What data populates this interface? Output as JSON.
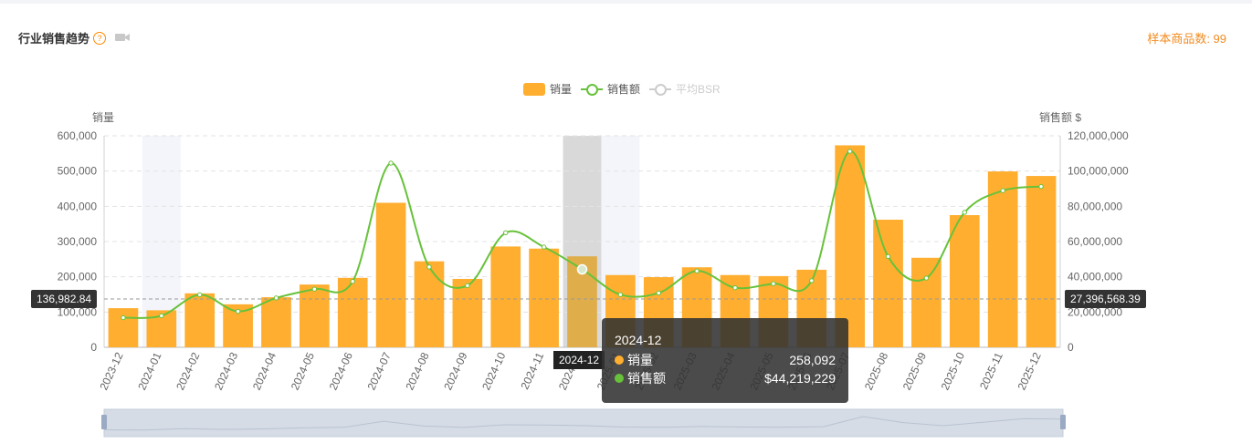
{
  "header": {
    "title": "行业销售趋势",
    "help_icon": "?",
    "sample_label": "样本商品数: 99"
  },
  "legend": [
    {
      "name": "销量",
      "type": "bar",
      "color": "#ffae2f",
      "active": true
    },
    {
      "name": "销售额",
      "type": "line",
      "color": "#67c23a",
      "active": true
    },
    {
      "name": "平均BSR",
      "type": "line",
      "color": "#cccccc",
      "active": false
    }
  ],
  "axes": {
    "left_title": "销量",
    "right_title": "销售额 $",
    "left_ticks": [
      "0",
      "100,000",
      "200,000",
      "300,000",
      "400,000",
      "500,000",
      "600,000"
    ],
    "right_ticks": [
      "0",
      "20,000,000",
      "40,000,000",
      "60,000,000",
      "80,000,000",
      "100,000,000",
      "120,000,000"
    ]
  },
  "crosshair": {
    "left_value": "136,982.84",
    "right_value": "27,396,568.39",
    "x_label": "2024-12"
  },
  "tooltip": {
    "title": "2024-12",
    "rows": [
      {
        "name": "销量",
        "value": "258,092",
        "color": "#ffae2f"
      },
      {
        "name": "销售额",
        "value": "$44,219,229",
        "color": "#67c23a"
      }
    ]
  },
  "chart_data": {
    "type": "bar",
    "categories": [
      "2023-12",
      "2024-01",
      "2024-02",
      "2024-03",
      "2024-04",
      "2024-05",
      "2024-06",
      "2024-07",
      "2024-08",
      "2024-09",
      "2024-10",
      "2024-11",
      "2024-12",
      "2025-01",
      "2025-02",
      "2025-03",
      "2025-04",
      "2025-05",
      "2025-06",
      "2025-07",
      "2025-08",
      "2025-09",
      "2025-10",
      "2025-11",
      "2025-12"
    ],
    "series": [
      {
        "name": "销量",
        "type": "bar",
        "axis": "left",
        "color": "#ffae2f",
        "values": [
          111000,
          105000,
          153000,
          122000,
          142000,
          178000,
          197000,
          410000,
          244000,
          194000,
          286000,
          280000,
          258092,
          205000,
          199000,
          227000,
          205000,
          202000,
          220000,
          573000,
          362000,
          254000,
          375000,
          499000,
          486000
        ]
      },
      {
        "name": "销售额",
        "type": "line",
        "axis": "right",
        "color": "#67c23a",
        "values": [
          16800000,
          17900000,
          29800000,
          20400000,
          28000000,
          33000000,
          37400000,
          104500000,
          45600000,
          35000000,
          65000000,
          56900000,
          44219229,
          29900000,
          30800000,
          43300000,
          33800000,
          36100000,
          37800000,
          111200000,
          51500000,
          39300000,
          76600000,
          88900000,
          91200000
        ]
      }
    ],
    "ylim_left": [
      0,
      600000
    ],
    "ylim_right": [
      0,
      120000000
    ],
    "highlighted_category": "2024-12",
    "grid": true,
    "legend_position": "top-center"
  },
  "slider": {
    "overview_values": [
      111000,
      105000,
      153000,
      122000,
      142000,
      178000,
      197000,
      410000,
      244000,
      194000,
      286000,
      280000,
      258092,
      205000,
      199000,
      227000,
      205000,
      202000,
      220000,
      573000,
      362000,
      254000,
      375000,
      499000,
      486000
    ]
  }
}
